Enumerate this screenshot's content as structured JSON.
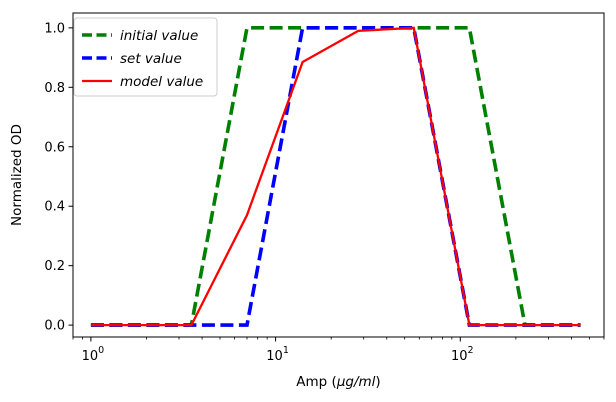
{
  "chart_data": {
    "type": "line",
    "xscale": "log",
    "xlim": [
      0.8,
      600
    ],
    "ylim": [
      -0.04,
      1.05
    ],
    "xlabel_prefix": "Amp (",
    "xlabel_unit": "μg/ml",
    "xlabel_suffix": ")",
    "ylabel": "Normalized OD",
    "x_ticks": [
      {
        "value": 1,
        "base": "10",
        "exp": "0"
      },
      {
        "value": 10,
        "base": "10",
        "exp": "1"
      },
      {
        "value": 100,
        "base": "10",
        "exp": "2"
      }
    ],
    "y_ticks": [
      0.0,
      0.2,
      0.4,
      0.6,
      0.8,
      1.0
    ],
    "y_tick_labels": [
      "0.0",
      "0.2",
      "0.4",
      "0.6",
      "0.8",
      "1.0"
    ],
    "legend_position": "top-left",
    "series": [
      {
        "name": "initial value",
        "color": "#008000",
        "style": "dashed",
        "x": [
          1,
          1.75,
          3.5,
          7,
          14,
          28,
          56,
          112,
          224,
          448
        ],
        "y": [
          0,
          0,
          0,
          1,
          1,
          1,
          1,
          1,
          0,
          0
        ]
      },
      {
        "name": "set value",
        "color": "#0000ff",
        "style": "dashed",
        "x": [
          1,
          1.75,
          3.5,
          7,
          14,
          28,
          56,
          112,
          224,
          448
        ],
        "y": [
          0,
          0,
          0,
          0,
          1,
          1,
          1,
          0,
          0,
          0
        ]
      },
      {
        "name": "model value",
        "color": "#ff0000",
        "style": "solid",
        "x": [
          1,
          1.75,
          3.5,
          7,
          14,
          28,
          56,
          112,
          224,
          448
        ],
        "y": [
          0,
          0,
          0,
          0.37,
          0.885,
          0.99,
          1.0,
          0,
          0,
          0
        ]
      }
    ]
  }
}
